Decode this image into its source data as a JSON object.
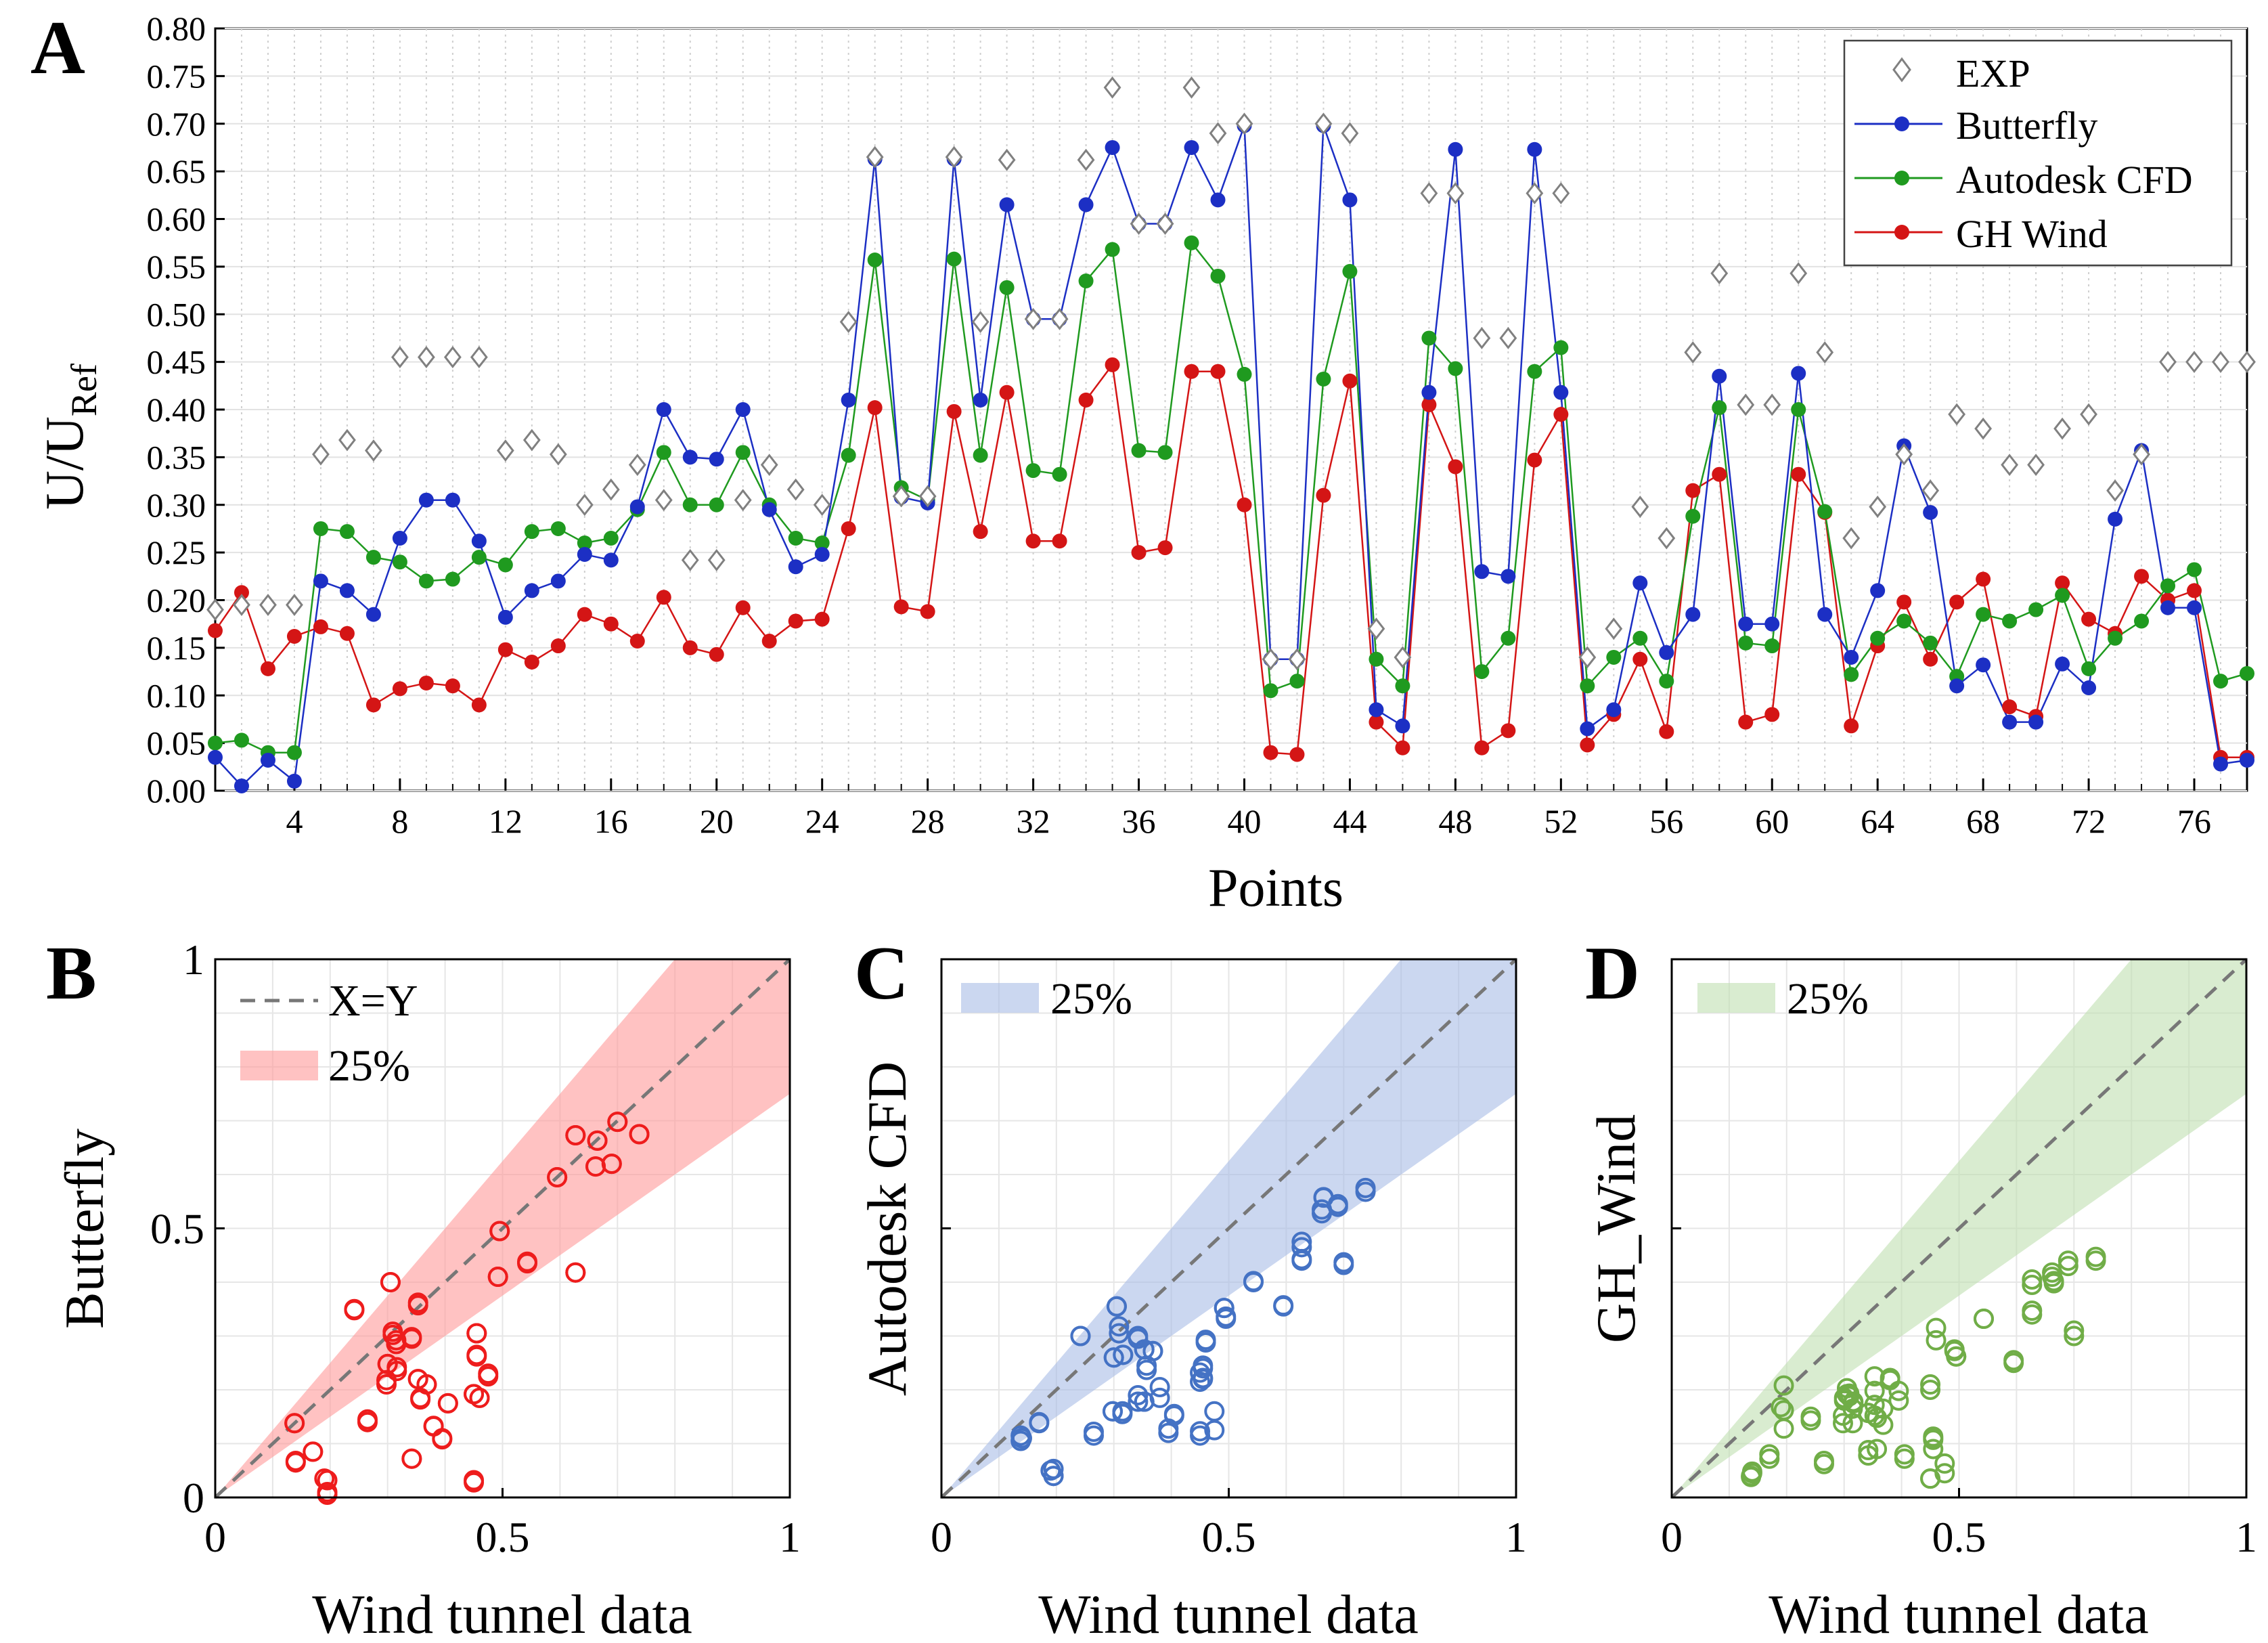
{
  "colors": {
    "exp": "#808080",
    "butterfly": "#1c2fc4",
    "autodesk": "#1f9a1f",
    "ghwind": "#d41515",
    "band_b": "#ff9a9a",
    "band_c": "#a9bde6",
    "band_d": "#bfe0b0",
    "scatter_b": "#ee1c1c",
    "scatter_c": "#4472c4",
    "scatter_d": "#70ad47"
  },
  "chart_data": [
    {
      "panel": "A",
      "type": "line",
      "panel_label": "A",
      "xlabel": "Points",
      "ylabel_main": "U/U",
      "ylabel_sub": "Ref",
      "xlim": [
        1,
        78
      ],
      "ylim": [
        0,
        0.8
      ],
      "xticks": [
        "4",
        "8",
        "12",
        "16",
        "20",
        "24",
        "28",
        "32",
        "36",
        "40",
        "44",
        "48",
        "52",
        "56",
        "60",
        "64",
        "68",
        "72",
        "76"
      ],
      "yticks": [
        "0.00",
        "0.05",
        "0.10",
        "0.15",
        "0.20",
        "0.25",
        "0.30",
        "0.35",
        "0.40",
        "0.45",
        "0.50",
        "0.55",
        "0.60",
        "0.65",
        "0.70",
        "0.75",
        "0.80"
      ],
      "legend_position": "top-right",
      "legend": [
        "EXP",
        "Butterfly",
        "Autodesk CFD",
        "GH Wind"
      ],
      "x": [
        1,
        2,
        3,
        4,
        5,
        6,
        7,
        8,
        9,
        10,
        11,
        12,
        13,
        14,
        15,
        16,
        17,
        18,
        19,
        20,
        21,
        22,
        23,
        24,
        25,
        26,
        27,
        28,
        29,
        30,
        31,
        32,
        33,
        34,
        35,
        36,
        37,
        38,
        39,
        40,
        41,
        42,
        43,
        44,
        45,
        46,
        47,
        48,
        49,
        50,
        51,
        52,
        53,
        54,
        55,
        56,
        57,
        58,
        59,
        60,
        61,
        62,
        63,
        64,
        65,
        66,
        67,
        68,
        69,
        70,
        71,
        72,
        73,
        74,
        75,
        76,
        77,
        78
      ],
      "series": [
        {
          "name": "EXP",
          "values": [
            0.19,
            0.195,
            0.195,
            0.195,
            0.353,
            0.368,
            0.357,
            0.455,
            0.455,
            0.455,
            0.455,
            0.357,
            0.368,
            0.353,
            0.3,
            0.316,
            0.342,
            0.305,
            0.242,
            0.242,
            0.305,
            0.342,
            0.316,
            0.3,
            0.492,
            0.665,
            0.309,
            0.309,
            0.665,
            0.492,
            0.662,
            0.495,
            0.495,
            0.662,
            0.738,
            0.595,
            0.595,
            0.738,
            0.69,
            0.7,
            0.138,
            0.138,
            0.7,
            0.69,
            0.17,
            0.14,
            0.627,
            0.627,
            0.475,
            0.475,
            0.627,
            0.627,
            0.14,
            0.17,
            0.298,
            0.265,
            0.46,
            0.543,
            0.405,
            0.405,
            0.543,
            0.46,
            0.265,
            0.298,
            0.353,
            0.315,
            0.395,
            0.38,
            0.342,
            0.342,
            0.38,
            0.395,
            0.315,
            0.353,
            0.45,
            0.45,
            0.45,
            0.45
          ]
        },
        {
          "name": "Butterfly",
          "values": [
            0.035,
            0.005,
            0.032,
            0.01,
            0.22,
            0.21,
            0.185,
            0.265,
            0.305,
            0.305,
            0.262,
            0.182,
            0.21,
            0.22,
            0.248,
            0.242,
            0.298,
            0.4,
            0.35,
            0.348,
            0.4,
            0.295,
            0.235,
            0.248,
            0.41,
            0.663,
            0.308,
            0.302,
            0.663,
            0.41,
            0.615,
            0.495,
            0.495,
            0.615,
            0.675,
            0.595,
            0.595,
            0.675,
            0.62,
            0.698,
            0.138,
            0.138,
            0.698,
            0.62,
            0.085,
            0.068,
            0.418,
            0.673,
            0.23,
            0.225,
            0.673,
            0.418,
            0.065,
            0.085,
            0.218,
            0.145,
            0.185,
            0.435,
            0.175,
            0.175,
            0.438,
            0.185,
            0.14,
            0.21,
            0.362,
            0.292,
            0.11,
            0.132,
            0.072,
            0.072,
            0.133,
            0.108,
            0.285,
            0.357,
            0.192,
            0.192,
            0.028,
            0.032
          ]
        },
        {
          "name": "Autodesk CFD",
          "values": [
            0.05,
            0.053,
            0.04,
            0.04,
            0.275,
            0.272,
            0.245,
            0.24,
            0.22,
            0.222,
            0.245,
            0.237,
            0.272,
            0.275,
            0.26,
            0.265,
            0.295,
            0.355,
            0.3,
            0.3,
            0.355,
            0.3,
            0.265,
            0.26,
            0.352,
            0.557,
            0.318,
            0.305,
            0.558,
            0.352,
            0.528,
            0.336,
            0.332,
            0.535,
            0.568,
            0.357,
            0.355,
            0.575,
            0.54,
            0.437,
            0.105,
            0.115,
            0.432,
            0.545,
            0.138,
            0.11,
            0.475,
            0.443,
            0.125,
            0.16,
            0.44,
            0.465,
            0.11,
            0.14,
            0.16,
            0.115,
            0.288,
            0.402,
            0.155,
            0.152,
            0.4,
            0.293,
            0.122,
            0.16,
            0.178,
            0.155,
            0.12,
            0.185,
            0.178,
            0.19,
            0.205,
            0.128,
            0.16,
            0.178,
            0.215,
            0.232,
            0.115,
            0.123
          ]
        },
        {
          "name": "GH Wind",
          "values": [
            0.168,
            0.208,
            0.128,
            0.162,
            0.172,
            0.165,
            0.09,
            0.107,
            0.113,
            0.11,
            0.09,
            0.148,
            0.135,
            0.152,
            0.185,
            0.175,
            0.157,
            0.203,
            0.15,
            0.143,
            0.192,
            0.157,
            0.178,
            0.18,
            0.275,
            0.402,
            0.193,
            0.188,
            0.398,
            0.272,
            0.418,
            0.262,
            0.262,
            0.41,
            0.447,
            0.25,
            0.255,
            0.44,
            0.44,
            0.3,
            0.04,
            0.038,
            0.31,
            0.43,
            0.072,
            0.045,
            0.405,
            0.34,
            0.045,
            0.063,
            0.347,
            0.395,
            0.048,
            0.08,
            0.138,
            0.062,
            0.315,
            0.332,
            0.072,
            0.08,
            0.332,
            0.292,
            0.068,
            0.152,
            0.198,
            0.138,
            0.198,
            0.222,
            0.088,
            0.078,
            0.218,
            0.18,
            0.165,
            0.225,
            0.2,
            0.21,
            0.035,
            0.035
          ]
        }
      ]
    },
    {
      "panel": "B",
      "type": "scatter",
      "panel_label": "B",
      "xlabel": "Wind tunnel data",
      "ylabel": "Butterfly",
      "xlim": [
        0,
        1
      ],
      "ylim": [
        0,
        1
      ],
      "xticks": [
        "0",
        "0.5",
        "1"
      ],
      "yticks": [
        "0",
        "0.5",
        "1"
      ],
      "legend": [
        "X=Y",
        "25%"
      ],
      "legend_position": "top-left",
      "band": 0.25
    },
    {
      "panel": "C",
      "type": "scatter",
      "panel_label": "C",
      "xlabel": "Wind tunnel data",
      "ylabel": "Autodesk CFD",
      "xlim": [
        0,
        1
      ],
      "ylim": [
        0,
        1
      ],
      "xticks": [
        "0",
        "0.5",
        "1"
      ],
      "yticks": [],
      "legend": [
        "25%"
      ],
      "legend_position": "top-left",
      "band": 0.25
    },
    {
      "panel": "D",
      "type": "scatter",
      "panel_label": "D",
      "xlabel": "Wind tunnel data",
      "ylabel": "GH_Wind",
      "xlim": [
        0,
        1
      ],
      "ylim": [
        0,
        1
      ],
      "xticks": [
        "0",
        "0.5",
        "1"
      ],
      "yticks": [],
      "legend": [
        "25%"
      ],
      "legend_position": "top-left",
      "band": 0.25
    }
  ]
}
